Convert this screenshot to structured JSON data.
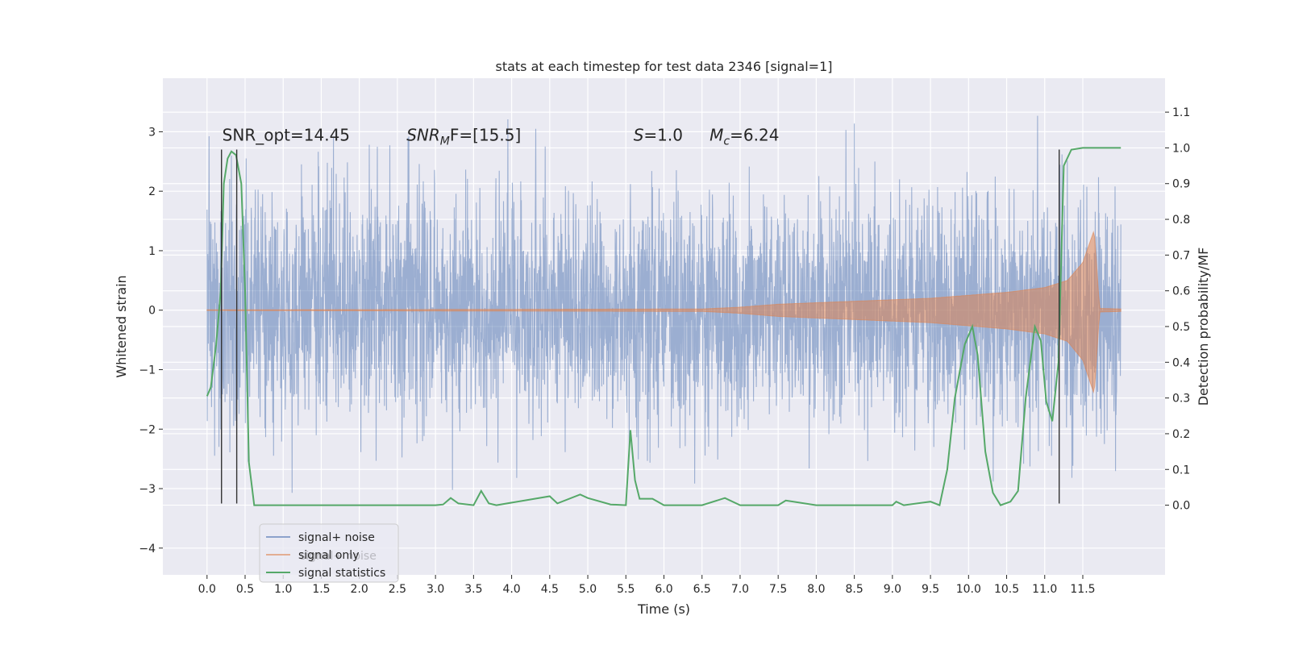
{
  "chart_data": {
    "type": "line",
    "title": "stats at each timestep for test data 2346 [signal=1]",
    "xlabel": "Time (s)",
    "ylabel_left": "Whitened strain",
    "ylabel_right": "Detection probability/MF",
    "xlim": [
      -0.58,
      12.58
    ],
    "ylim_left": [
      -4.45,
      3.9
    ],
    "ylim_right": [
      -0.195,
      1.195
    ],
    "x_ticks": [
      0.0,
      0.5,
      1.0,
      1.5,
      2.0,
      2.5,
      3.0,
      3.5,
      4.0,
      4.5,
      5.0,
      5.5,
      6.0,
      6.5,
      7.0,
      7.5,
      8.0,
      8.5,
      9.0,
      9.5,
      10.0,
      10.5,
      11.0,
      11.5
    ],
    "x_tick_labels": [
      "0.0",
      "0.5",
      "1.0",
      "1.5",
      "2.0",
      "2.5",
      "3.0",
      "3.5",
      "4.0",
      "4.5",
      "5.0",
      "5.5",
      "6.0",
      "6.5",
      "7.0",
      "7.5",
      "8.0",
      "8.5",
      "9.0",
      "9.5",
      "10.0",
      "10.5",
      "11.0",
      "11.5"
    ],
    "y_left_ticks": [
      -4,
      -3,
      -2,
      -1,
      0,
      1,
      2,
      3
    ],
    "y_left_tick_labels": [
      "−4",
      "−3",
      "−2",
      "−1",
      "0",
      "1",
      "2",
      "3"
    ],
    "y_right_ticks": [
      0.0,
      0.1,
      0.2,
      0.3,
      0.4,
      0.5,
      0.6,
      0.7,
      0.8,
      0.9,
      1.0,
      1.1
    ],
    "y_right_tick_labels": [
      "0.0",
      "0.1",
      "0.2",
      "0.3",
      "0.4",
      "0.5",
      "0.6",
      "0.7",
      "0.8",
      "0.9",
      "1.0",
      "1.1"
    ],
    "grid": true,
    "annotations": [
      {
        "text": "SNR_opt=14.45",
        "x": 0.2,
        "y_left": 2.85
      },
      {
        "text": "SNR",
        "sub": "M",
        "suffix": "F=[15.5]",
        "x": 2.62,
        "y_left": 2.85,
        "italic": true
      },
      {
        "text": "S",
        "suffix": "=1.0",
        "x": 5.6,
        "y_left": 2.85,
        "italic": true
      },
      {
        "text": "M",
        "sub": "c",
        "suffix": "=6.24",
        "x": 6.6,
        "y_left": 2.85,
        "italic": true
      }
    ],
    "vertical_lines_x": [
      0.19,
      0.39,
      11.19
    ],
    "vertical_lines_y_range_left": [
      -3.25,
      2.7
    ],
    "series": [
      {
        "name": "signal+ noise",
        "color": "#4c72b0",
        "noise_std": 0.95,
        "x_range": [
          0.0,
          12.0
        ]
      },
      {
        "name": "signal only",
        "color": "#dd8452",
        "envelope": [
          [
            0.0,
            0.005
          ],
          [
            6.5,
            0.02
          ],
          [
            7.0,
            0.05
          ],
          [
            7.5,
            0.1
          ],
          [
            8.5,
            0.15
          ],
          [
            9.5,
            0.2
          ],
          [
            10.0,
            0.25
          ],
          [
            10.5,
            0.3
          ],
          [
            11.0,
            0.38
          ],
          [
            11.3,
            0.5
          ],
          [
            11.5,
            0.8
          ],
          [
            11.65,
            1.35
          ],
          [
            11.72,
            0.03
          ],
          [
            12.0,
            0.02
          ]
        ]
      },
      {
        "name": "signal statistics",
        "color": "#55a868",
        "axis": "right",
        "points": [
          [
            0.0,
            0.305
          ],
          [
            0.05,
            0.33
          ],
          [
            0.12,
            0.45
          ],
          [
            0.18,
            0.6
          ],
          [
            0.22,
            0.9
          ],
          [
            0.27,
            0.97
          ],
          [
            0.32,
            0.99
          ],
          [
            0.38,
            0.98
          ],
          [
            0.45,
            0.9
          ],
          [
            0.5,
            0.6
          ],
          [
            0.55,
            0.12
          ],
          [
            0.62,
            0.0
          ],
          [
            1.0,
            0.0
          ],
          [
            2.0,
            0.0
          ],
          [
            3.0,
            0.0
          ],
          [
            3.1,
            0.002
          ],
          [
            3.2,
            0.02
          ],
          [
            3.3,
            0.005
          ],
          [
            3.5,
            0.0
          ],
          [
            3.6,
            0.04
          ],
          [
            3.7,
            0.005
          ],
          [
            3.8,
            0.0
          ],
          [
            4.5,
            0.025
          ],
          [
            4.6,
            0.005
          ],
          [
            4.9,
            0.03
          ],
          [
            5.0,
            0.02
          ],
          [
            5.3,
            0.002
          ],
          [
            5.5,
            0.0
          ],
          [
            5.56,
            0.21
          ],
          [
            5.62,
            0.07
          ],
          [
            5.68,
            0.018
          ],
          [
            5.85,
            0.018
          ],
          [
            6.0,
            0.0
          ],
          [
            6.5,
            0.0
          ],
          [
            6.8,
            0.02
          ],
          [
            7.0,
            0.0
          ],
          [
            7.5,
            0.0
          ],
          [
            7.6,
            0.013
          ],
          [
            8.0,
            0.0
          ],
          [
            9.0,
            0.0
          ],
          [
            9.05,
            0.01
          ],
          [
            9.15,
            0.0
          ],
          [
            9.5,
            0.01
          ],
          [
            9.62,
            0.0
          ],
          [
            9.72,
            0.1
          ],
          [
            9.82,
            0.3
          ],
          [
            9.95,
            0.45
          ],
          [
            10.05,
            0.5
          ],
          [
            10.12,
            0.42
          ],
          [
            10.22,
            0.15
          ],
          [
            10.32,
            0.035
          ],
          [
            10.42,
            0.0
          ],
          [
            10.55,
            0.01
          ],
          [
            10.65,
            0.04
          ],
          [
            10.75,
            0.3
          ],
          [
            10.87,
            0.5
          ],
          [
            10.95,
            0.46
          ],
          [
            11.02,
            0.29
          ],
          [
            11.1,
            0.235
          ],
          [
            11.18,
            0.4
          ],
          [
            11.25,
            0.95
          ],
          [
            11.35,
            0.995
          ],
          [
            11.5,
            1.0
          ],
          [
            12.0,
            1.0
          ]
        ]
      }
    ],
    "legend": {
      "placement": "lower-left",
      "entries": [
        "signal+ noise",
        "signal only",
        "signal statistics"
      ],
      "overlap_text": "signal+ noise"
    }
  }
}
